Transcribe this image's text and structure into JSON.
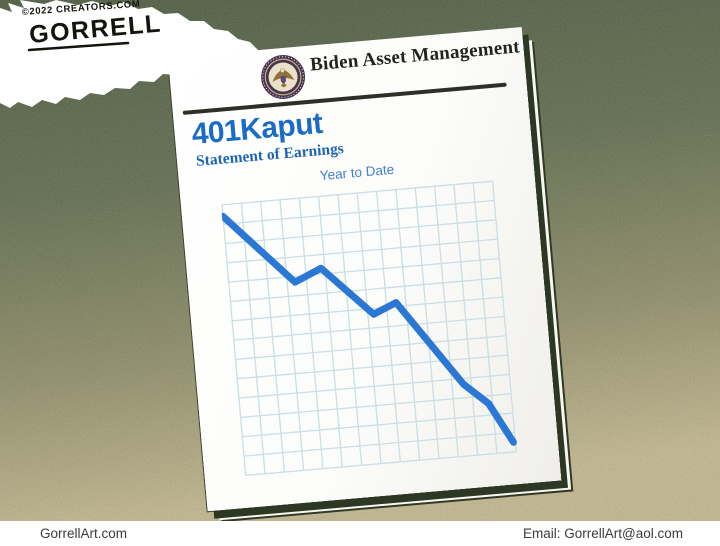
{
  "credit": {
    "copyright": "©2022 CREATORS.COM",
    "signature": "GORRELL"
  },
  "document": {
    "brand": "Biden Asset Management",
    "title": "401Kaput",
    "subtitle": "Statement of Earnings"
  },
  "chart_data": {
    "type": "line",
    "title": "Year to Date",
    "xlabel": "",
    "ylabel": "",
    "trend": "declining",
    "legend": "none",
    "grid": {
      "cols": 14,
      "rows": 14,
      "cell": 19.4,
      "color": "#c9dee6",
      "stroke_width": 1.3
    },
    "line": {
      "color": "#2a78d3",
      "width": 7
    },
    "axis_range": {
      "x": [
        0,
        14
      ],
      "y": [
        0,
        14
      ]
    },
    "points": [
      {
        "x": 0.0,
        "y": 13.4
      },
      {
        "x": 3.4,
        "y": 9.7
      },
      {
        "x": 4.8,
        "y": 10.3
      },
      {
        "x": 7.3,
        "y": 7.7
      },
      {
        "x": 8.5,
        "y": 8.2
      },
      {
        "x": 11.6,
        "y": 3.7
      },
      {
        "x": 12.8,
        "y": 2.6
      },
      {
        "x": 13.9,
        "y": 0.5
      }
    ]
  },
  "footer": {
    "left": "GorrellArt.com",
    "right": "Email: GorrellArt@aol.com"
  },
  "colors": {
    "background_top": "#46533c",
    "background_bottom": "#c2b58e",
    "paper": "#ffffff",
    "paper_shadow": "#2d3824",
    "accent_blue": "#1b6cc6",
    "chart_line_blue": "#2a78d3",
    "chart_grid_blue": "#c9dee6",
    "seal_ring": "#4a3454",
    "seal_field": "#eae2c8",
    "seal_eagle": "#8f7339"
  }
}
